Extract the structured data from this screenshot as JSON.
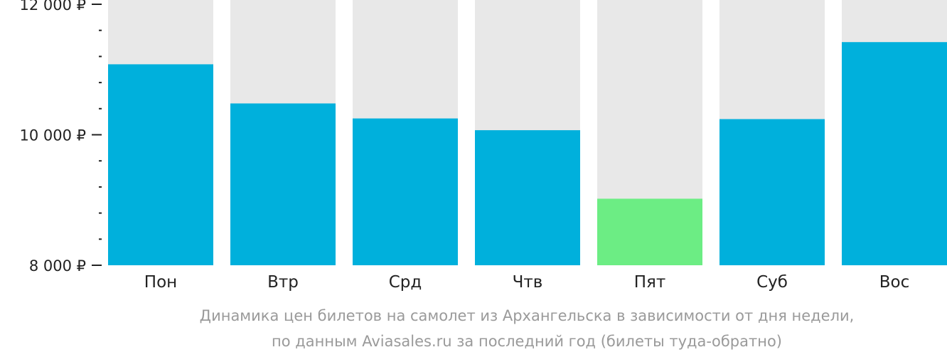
{
  "chart_data": {
    "type": "bar",
    "categories": [
      "Пон",
      "Втр",
      "Срд",
      "Чтв",
      "Пят",
      "Суб",
      "Вос"
    ],
    "values": [
      11080,
      10480,
      10250,
      10070,
      9020,
      10240,
      11420
    ],
    "highlight_index": 4,
    "ylim": [
      8000,
      12000
    ],
    "y_ticks": [
      {
        "value": 12000,
        "label": "12 000 ₽"
      },
      {
        "value": 10000,
        "label": "10 000 ₽"
      },
      {
        "value": 8000,
        "label": "8 000 ₽"
      }
    ],
    "minor_tick_step": 400,
    "grid": false,
    "colors": {
      "bar": "#00b0dc",
      "highlight": "#6ced84",
      "track": "#e8e8e8",
      "axis": "#222222",
      "caption": "#9a9a9a"
    }
  },
  "caption": {
    "line1": "Динамика цен билетов на самолет из Архангельска в зависимости от дня недели,",
    "line2": "по данным Aviasales.ru за последний год (билеты туда-обратно)"
  }
}
